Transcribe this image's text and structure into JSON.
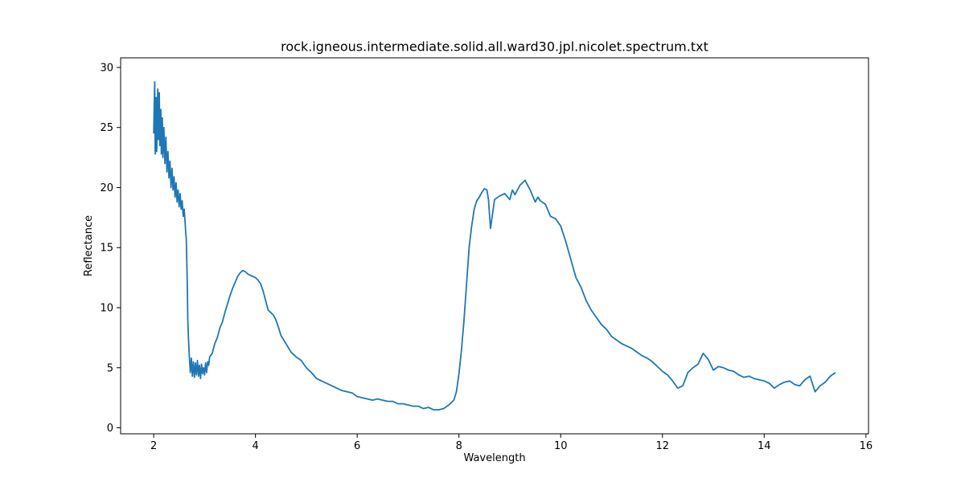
{
  "chart_data": {
    "type": "line",
    "title": "rock.igneous.intermediate.solid.all.ward30.jpl.nicolet.spectrum.txt",
    "xlabel": "Wavelength",
    "ylabel": "Reflectance",
    "xlim": [
      1.35,
      16.05
    ],
    "ylim": [
      -0.5,
      30.8
    ],
    "xticks": [
      2,
      4,
      6,
      8,
      10,
      12,
      14,
      16
    ],
    "yticks": [
      0,
      5,
      10,
      15,
      20,
      25,
      30
    ],
    "grid": false,
    "series": [
      {
        "color": "#1f77b4",
        "points": [
          [
            2.0,
            24.5
          ],
          [
            2.02,
            28.8
          ],
          [
            2.03,
            22.8
          ],
          [
            2.05,
            27.5
          ],
          [
            2.06,
            23.0
          ],
          [
            2.08,
            28.2
          ],
          [
            2.09,
            24.0
          ],
          [
            2.11,
            27.9
          ],
          [
            2.12,
            23.5
          ],
          [
            2.14,
            26.5
          ],
          [
            2.15,
            22.8
          ],
          [
            2.17,
            25.8
          ],
          [
            2.18,
            22.5
          ],
          [
            2.2,
            25.0
          ],
          [
            2.22,
            22.0
          ],
          [
            2.24,
            24.2
          ],
          [
            2.26,
            21.3
          ],
          [
            2.28,
            23.0
          ],
          [
            2.3,
            20.8
          ],
          [
            2.32,
            22.2
          ],
          [
            2.34,
            20.0
          ],
          [
            2.36,
            21.6
          ],
          [
            2.38,
            19.8
          ],
          [
            2.4,
            20.9
          ],
          [
            2.42,
            19.2
          ],
          [
            2.44,
            20.4
          ],
          [
            2.46,
            18.8
          ],
          [
            2.48,
            19.8
          ],
          [
            2.5,
            18.4
          ],
          [
            2.52,
            19.5
          ],
          [
            2.54,
            18.2
          ],
          [
            2.56,
            18.9
          ],
          [
            2.58,
            17.6
          ],
          [
            2.6,
            18.2
          ],
          [
            2.62,
            16.9
          ],
          [
            2.63,
            16.2
          ],
          [
            2.64,
            15.8
          ],
          [
            2.65,
            14.0
          ],
          [
            2.66,
            12.0
          ],
          [
            2.67,
            9.0
          ],
          [
            2.68,
            7.8
          ],
          [
            2.7,
            6.0
          ],
          [
            2.72,
            4.6
          ],
          [
            2.74,
            5.8
          ],
          [
            2.76,
            4.3
          ],
          [
            2.78,
            5.5
          ],
          [
            2.8,
            4.2
          ],
          [
            2.82,
            5.4
          ],
          [
            2.84,
            4.4
          ],
          [
            2.86,
            5.6
          ],
          [
            2.88,
            4.3
          ],
          [
            2.9,
            5.2
          ],
          [
            2.92,
            4.1
          ],
          [
            2.94,
            5.3
          ],
          [
            2.96,
            4.5
          ],
          [
            2.98,
            5.0
          ],
          [
            3.0,
            4.4
          ],
          [
            3.02,
            5.4
          ],
          [
            3.04,
            4.6
          ],
          [
            3.06,
            5.5
          ],
          [
            3.08,
            5.2
          ],
          [
            3.1,
            5.9
          ],
          [
            3.15,
            6.2
          ],
          [
            3.2,
            7.0
          ],
          [
            3.25,
            7.5
          ],
          [
            3.3,
            8.3
          ],
          [
            3.35,
            8.8
          ],
          [
            3.4,
            9.6
          ],
          [
            3.45,
            10.3
          ],
          [
            3.5,
            11.0
          ],
          [
            3.55,
            11.6
          ],
          [
            3.6,
            12.1
          ],
          [
            3.65,
            12.6
          ],
          [
            3.7,
            12.9
          ],
          [
            3.75,
            13.1
          ],
          [
            3.8,
            13.0
          ],
          [
            3.85,
            12.8
          ],
          [
            3.9,
            12.7
          ],
          [
            3.95,
            12.6
          ],
          [
            4.0,
            12.5
          ],
          [
            4.05,
            12.3
          ],
          [
            4.1,
            12.0
          ],
          [
            4.15,
            11.4
          ],
          [
            4.2,
            10.6
          ],
          [
            4.25,
            9.8
          ],
          [
            4.3,
            9.6
          ],
          [
            4.35,
            9.4
          ],
          [
            4.4,
            9.0
          ],
          [
            4.45,
            8.4
          ],
          [
            4.5,
            7.7
          ],
          [
            4.6,
            7.0
          ],
          [
            4.7,
            6.3
          ],
          [
            4.8,
            5.9
          ],
          [
            4.9,
            5.6
          ],
          [
            5.0,
            5.0
          ],
          [
            5.1,
            4.6
          ],
          [
            5.2,
            4.1
          ],
          [
            5.3,
            3.9
          ],
          [
            5.4,
            3.7
          ],
          [
            5.5,
            3.5
          ],
          [
            5.6,
            3.3
          ],
          [
            5.7,
            3.1
          ],
          [
            5.8,
            3.0
          ],
          [
            5.9,
            2.9
          ],
          [
            6.0,
            2.6
          ],
          [
            6.1,
            2.5
          ],
          [
            6.2,
            2.4
          ],
          [
            6.3,
            2.3
          ],
          [
            6.4,
            2.4
          ],
          [
            6.5,
            2.3
          ],
          [
            6.6,
            2.2
          ],
          [
            6.7,
            2.2
          ],
          [
            6.8,
            2.0
          ],
          [
            6.9,
            2.0
          ],
          [
            7.0,
            1.9
          ],
          [
            7.1,
            1.8
          ],
          [
            7.2,
            1.8
          ],
          [
            7.3,
            1.6
          ],
          [
            7.4,
            1.7
          ],
          [
            7.5,
            1.5
          ],
          [
            7.6,
            1.5
          ],
          [
            7.7,
            1.6
          ],
          [
            7.8,
            1.9
          ],
          [
            7.9,
            2.3
          ],
          [
            7.95,
            3.0
          ],
          [
            8.0,
            4.5
          ],
          [
            8.05,
            6.5
          ],
          [
            8.1,
            9.0
          ],
          [
            8.15,
            12.0
          ],
          [
            8.2,
            15.0
          ],
          [
            8.25,
            16.8
          ],
          [
            8.3,
            18.2
          ],
          [
            8.35,
            18.9
          ],
          [
            8.4,
            19.2
          ],
          [
            8.45,
            19.6
          ],
          [
            8.5,
            19.9
          ],
          [
            8.55,
            19.8
          ],
          [
            8.58,
            19.0
          ],
          [
            8.6,
            17.8
          ],
          [
            8.62,
            16.6
          ],
          [
            8.65,
            17.5
          ],
          [
            8.7,
            19.0
          ],
          [
            8.8,
            19.3
          ],
          [
            8.9,
            19.5
          ],
          [
            9.0,
            19.0
          ],
          [
            9.05,
            19.8
          ],
          [
            9.1,
            19.4
          ],
          [
            9.2,
            20.2
          ],
          [
            9.3,
            20.6
          ],
          [
            9.4,
            19.8
          ],
          [
            9.5,
            18.8
          ],
          [
            9.55,
            19.2
          ],
          [
            9.6,
            18.9
          ],
          [
            9.7,
            18.6
          ],
          [
            9.8,
            17.6
          ],
          [
            9.9,
            17.4
          ],
          [
            10.0,
            16.8
          ],
          [
            10.1,
            15.5
          ],
          [
            10.2,
            14.0
          ],
          [
            10.3,
            12.5
          ],
          [
            10.4,
            11.7
          ],
          [
            10.5,
            10.6
          ],
          [
            10.6,
            9.8
          ],
          [
            10.7,
            9.2
          ],
          [
            10.8,
            8.6
          ],
          [
            10.9,
            8.2
          ],
          [
            11.0,
            7.6
          ],
          [
            11.1,
            7.3
          ],
          [
            11.2,
            7.0
          ],
          [
            11.3,
            6.8
          ],
          [
            11.4,
            6.6
          ],
          [
            11.5,
            6.3
          ],
          [
            11.6,
            6.0
          ],
          [
            11.7,
            5.8
          ],
          [
            11.8,
            5.5
          ],
          [
            11.9,
            5.1
          ],
          [
            12.0,
            4.7
          ],
          [
            12.1,
            4.4
          ],
          [
            12.2,
            3.9
          ],
          [
            12.3,
            3.3
          ],
          [
            12.4,
            3.5
          ],
          [
            12.5,
            4.6
          ],
          [
            12.6,
            5.0
          ],
          [
            12.7,
            5.3
          ],
          [
            12.8,
            6.2
          ],
          [
            12.9,
            5.7
          ],
          [
            13.0,
            4.8
          ],
          [
            13.1,
            5.1
          ],
          [
            13.2,
            5.0
          ],
          [
            13.3,
            4.8
          ],
          [
            13.4,
            4.7
          ],
          [
            13.5,
            4.4
          ],
          [
            13.6,
            4.2
          ],
          [
            13.7,
            4.3
          ],
          [
            13.8,
            4.1
          ],
          [
            13.9,
            4.0
          ],
          [
            14.0,
            3.9
          ],
          [
            14.1,
            3.7
          ],
          [
            14.2,
            3.3
          ],
          [
            14.3,
            3.6
          ],
          [
            14.4,
            3.8
          ],
          [
            14.5,
            3.9
          ],
          [
            14.6,
            3.6
          ],
          [
            14.7,
            3.5
          ],
          [
            14.8,
            4.0
          ],
          [
            14.9,
            4.3
          ],
          [
            15.0,
            3.0
          ],
          [
            15.1,
            3.5
          ],
          [
            15.2,
            3.8
          ],
          [
            15.3,
            4.3
          ],
          [
            15.4,
            4.6
          ]
        ]
      }
    ]
  }
}
